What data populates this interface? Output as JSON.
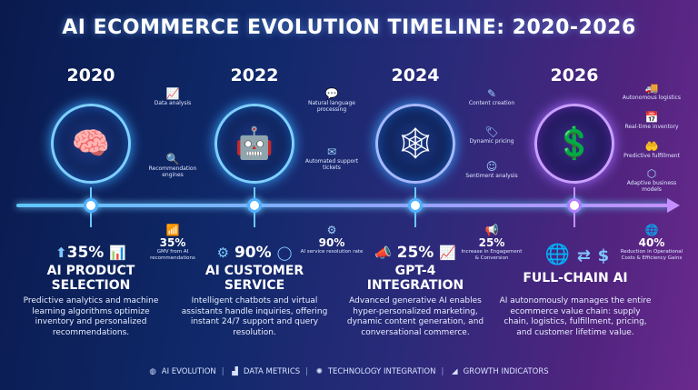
{
  "title": "AI ECOMMERCE EVOLUTION TIMELINE: 2020-2026",
  "colors": {
    "accent_blue": "#5ec8ff",
    "accent_purple": "#c490ff",
    "bg_start": "#0a1a4e",
    "bg_end": "#6a2a8e"
  },
  "milestones": [
    {
      "year": "2020",
      "icon": "brain-icon",
      "features": [
        {
          "icon": "chart-icon",
          "label": "Data analysis"
        },
        {
          "icon": "magnifier-icon",
          "label": "Recommendation engines"
        }
      ],
      "stat": "35%",
      "stat_icon": "arrow-up-icon",
      "title_line1": "AI PRODUCT",
      "title_line2": "SELECTION",
      "description": "Predictive analytics and machine learning algorithms optimize inventory and personalized recommendations.",
      "side_value": "35%",
      "side_label": "GMV from AI recommendations",
      "side_icon": "growth-chart-icon"
    },
    {
      "year": "2022",
      "icon": "robot-icon",
      "features": [
        {
          "icon": "chat-icon",
          "label": "Natural language processing"
        },
        {
          "icon": "envelope-icon",
          "label": "Automated support tickets"
        }
      ],
      "stat": "90%",
      "stat_icon": "gear-check-icon",
      "title_line1": "AI CUSTOMER",
      "title_line2": "SERVICE",
      "description": "Intelligent chatbots and virtual assistants handle inquiries, offering instant 24/7 support and query resolution.",
      "side_value": "90%",
      "side_label": "AI service resolution rate",
      "side_icon": "gear-check-icon"
    },
    {
      "year": "2024",
      "icon": "neural-network-icon",
      "features": [
        {
          "icon": "pencil-icon",
          "label": "Content creation"
        },
        {
          "icon": "price-tag-icon",
          "label": "Dynamic pricing"
        },
        {
          "icon": "smiley-icon",
          "label": "Sentiment analysis"
        }
      ],
      "stat": "25%",
      "stat_icon": "megaphone-icon",
      "title_line1": "GPT-4",
      "title_line2": "INTEGRATION",
      "description": "Advanced generative AI enables hyper-personalized marketing, dynamic content generation, and conversational commerce.",
      "side_value": "25%",
      "side_label": "Increase in Engagement & Conversion",
      "side_icon": "megaphone-icon"
    },
    {
      "year": "2026",
      "icon": "dollar-network-icon",
      "features": [
        {
          "icon": "truck-icon",
          "label": "Autonomous logistics"
        },
        {
          "icon": "calendar-icon",
          "label": "Real-time inventory"
        },
        {
          "icon": "hand-chart-icon",
          "label": "Predictive fulfillment"
        },
        {
          "icon": "cube-network-icon",
          "label": "Adaptive business models"
        }
      ],
      "stat": "",
      "stat_icon": "globe-icon",
      "title_line1": "FULL-CHAIN AI",
      "title_line2": "",
      "description": "AI autonomously manages the entire ecommerce value chain: supply chain, logistics, fulfillment, pricing, and customer lifetime value.",
      "side_value": "40%",
      "side_label": "Reduction in Operational Costs & Efficiency Gains",
      "side_icon": "globe-icon"
    }
  ],
  "legend": [
    "AI EVOLUTION",
    "DATA METRICS",
    "TECHNOLOGY INTEGRATION",
    "GROWTH INDICATORS"
  ]
}
